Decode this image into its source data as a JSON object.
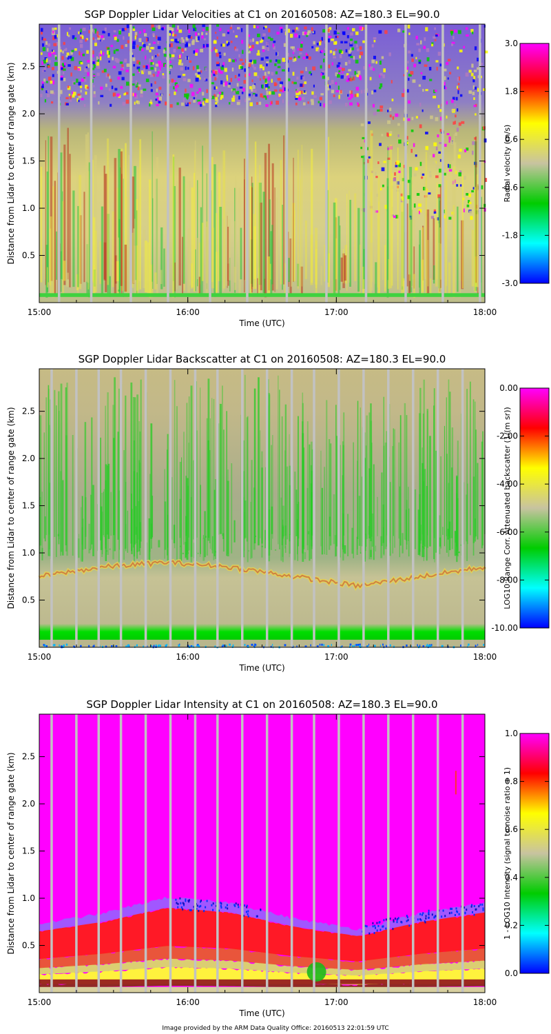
{
  "footer": "Image provided by the ARM Data Quality Office: 20160513 22:01:59 UTC",
  "chart_data": [
    {
      "type": "heatmap",
      "title": "SGP Doppler Lidar Velocities at C1 on 20160508: AZ=180.3 EL=90.0",
      "xlabel": "Time (UTC)",
      "ylabel": "Distance from Lidar to center of range gate (km)",
      "x_ticks": [
        "15:00",
        "16:00",
        "17:00",
        "18:00"
      ],
      "xlim": [
        "15:00",
        "18:00"
      ],
      "y_ticks": [
        "0.5",
        "1.0",
        "1.5",
        "2.0",
        "2.5"
      ],
      "ylim": [
        0.0,
        2.95
      ],
      "colorbar": {
        "label": "Radial velocity (m/s)",
        "ticks": [
          "-3.0",
          "-1.8",
          "-0.6",
          "0.6",
          "1.8",
          "3.0"
        ],
        "range": [
          -3.0,
          3.0
        ],
        "colors": [
          "#0000ff",
          "#00ffff",
          "#00cc00",
          "#c8c3a0",
          "#ffff00",
          "#ff0000",
          "#ff00ff"
        ]
      },
      "scan_gap_times": [
        "15:08",
        "15:21",
        "15:37",
        "15:52",
        "16:09",
        "16:24",
        "16:40",
        "16:56",
        "17:12",
        "17:28",
        "17:43",
        "17:58"
      ],
      "features": {
        "noise_above_km": 2.1,
        "lower_layer_top_km": 1.0,
        "late_day_noise_from_km": 0.9
      }
    },
    {
      "type": "heatmap",
      "title": "SGP Doppler Lidar Backscatter at C1 on 20160508: AZ=180.3 EL=90.0",
      "xlabel": "Time (UTC)",
      "ylabel": "Distance from Lidar to center of range gate (km)",
      "x_ticks": [
        "15:00",
        "16:00",
        "17:00",
        "18:00"
      ],
      "xlim": [
        "15:00",
        "18:00"
      ],
      "y_ticks": [
        "0.5",
        "1.0",
        "1.5",
        "2.0",
        "2.5"
      ],
      "ylim": [
        0.0,
        2.95
      ],
      "colorbar": {
        "label": "LOG10 Range Corr. Attenuated backscatter (1/(m sr))",
        "ticks": [
          "-10.00",
          "-8.00",
          "-6.00",
          "-4.00",
          "-2.00",
          "0.00"
        ],
        "range": [
          -10.0,
          0.0
        ],
        "colors": [
          "#0000ff",
          "#00ffff",
          "#00cc00",
          "#c8c3a0",
          "#ffff00",
          "#ff0000",
          "#ff00ff"
        ]
      },
      "scan_gap_times": [
        "15:05",
        "15:15",
        "15:24",
        "15:33",
        "15:43",
        "15:53",
        "16:03",
        "16:12",
        "16:22",
        "16:32",
        "16:42",
        "16:51",
        "17:01",
        "17:11",
        "17:21",
        "17:31",
        "17:41",
        "17:51"
      ],
      "features": {
        "boundary_layer_top_km": [
          0.75,
          0.85,
          0.9,
          0.85,
          0.75,
          0.65,
          0.75,
          0.85
        ]
      }
    },
    {
      "type": "heatmap",
      "title": "SGP Doppler Lidar Intensity at C1 on 20160508: AZ=180.3 EL=90.0",
      "xlabel": "Time (UTC)",
      "ylabel": "Distance from Lidar to center of range gate (km)",
      "x_ticks": [
        "15:00",
        "16:00",
        "17:00",
        "18:00"
      ],
      "xlim": [
        "15:00",
        "18:00"
      ],
      "y_ticks": [
        "0.5",
        "1.0",
        "1.5",
        "2.0",
        "2.5"
      ],
      "ylim": [
        0.0,
        2.95
      ],
      "colorbar": {
        "label": "1 - LOG10 Intensity (signal to noise ratio + 1)",
        "ticks": [
          "0.0",
          "0.2",
          "0.4",
          "0.6",
          "0.8",
          "1.0"
        ],
        "range": [
          0.0,
          1.0
        ],
        "colors": [
          "#0000ff",
          "#00ffff",
          "#00cc00",
          "#c8c3a0",
          "#ffff00",
          "#ff0000",
          "#ff00ff"
        ]
      },
      "scan_gap_times": [
        "15:05",
        "15:15",
        "15:24",
        "15:33",
        "15:43",
        "15:53",
        "16:03",
        "16:12",
        "16:22",
        "16:32",
        "16:42",
        "16:51",
        "17:01",
        "17:11",
        "17:21",
        "17:31",
        "17:41",
        "17:51"
      ],
      "features": {
        "signal_top_km": [
          0.65,
          0.75,
          0.9,
          0.85,
          0.7,
          0.6,
          0.75,
          0.85
        ]
      }
    }
  ]
}
